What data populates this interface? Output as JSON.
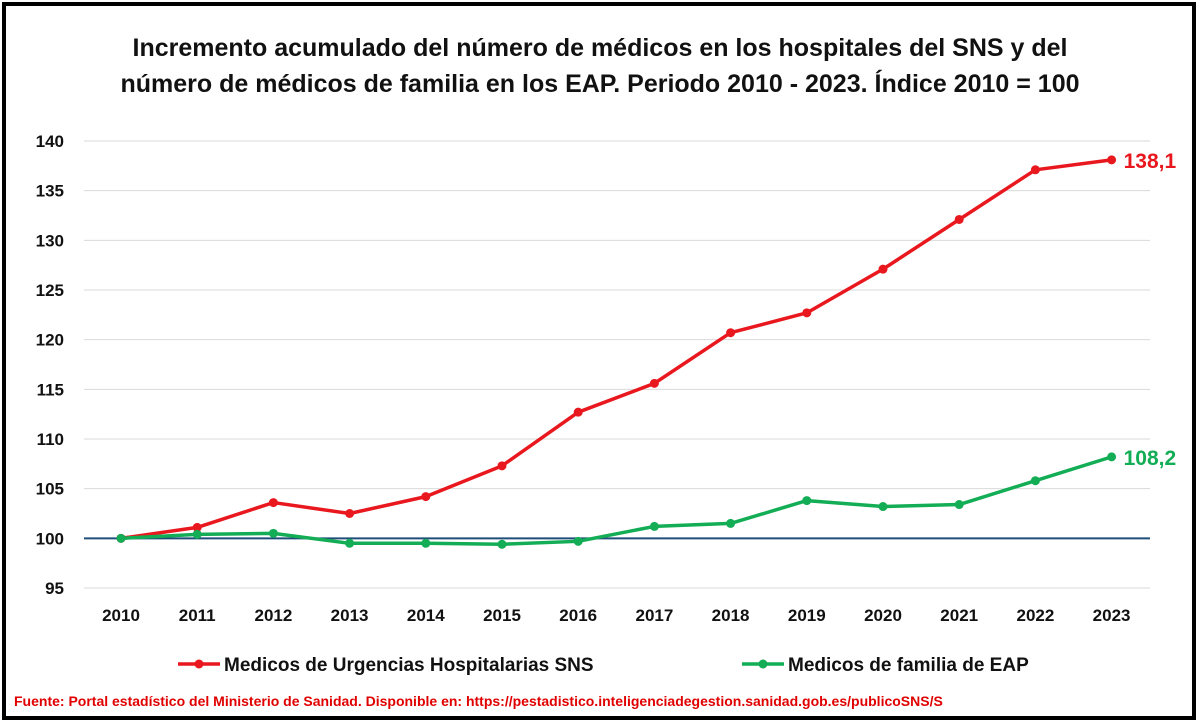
{
  "chart_data": {
    "type": "line",
    "title_lines": [
      "Incremento acumulado del número de médicos en los hospitales del SNS y del",
      "número de médicos de familia en los EAP. Periodo 2010 - 2023. Índice 2010 = 100"
    ],
    "x": [
      "2010",
      "2011",
      "2012",
      "2013",
      "2014",
      "2015",
      "2016",
      "2017",
      "2018",
      "2019",
      "2020",
      "2021",
      "2022",
      "2023"
    ],
    "ylim": [
      95,
      140
    ],
    "yticks": [
      95,
      100,
      105,
      110,
      115,
      120,
      125,
      130,
      135,
      140
    ],
    "baseline": 100,
    "grid": true,
    "legend_position": "bottom",
    "series": [
      {
        "name": "Medicos de Urgencias Hospitalarias SNS",
        "color": "#e8181e",
        "values": [
          100,
          101.1,
          103.6,
          102.5,
          104.2,
          107.3,
          112.7,
          115.6,
          120.7,
          122.7,
          127.1,
          132.1,
          137.1,
          138.1
        ],
        "end_label": "138,1"
      },
      {
        "name": "Medicos de familia de EAP",
        "color": "#12ad55",
        "values": [
          100,
          100.4,
          100.5,
          99.5,
          99.5,
          99.4,
          99.7,
          101.2,
          101.5,
          103.8,
          103.2,
          103.4,
          105.8,
          108.2
        ],
        "end_label": "108,2"
      }
    ],
    "baseline_color": "#1f4e79"
  },
  "source_text": "Fuente: Portal estadístico del Ministerio de Sanidad.  Disponible en: https://pestadistico.inteligenciadegestion.sanidad.gob.es/publicoSNS/S"
}
